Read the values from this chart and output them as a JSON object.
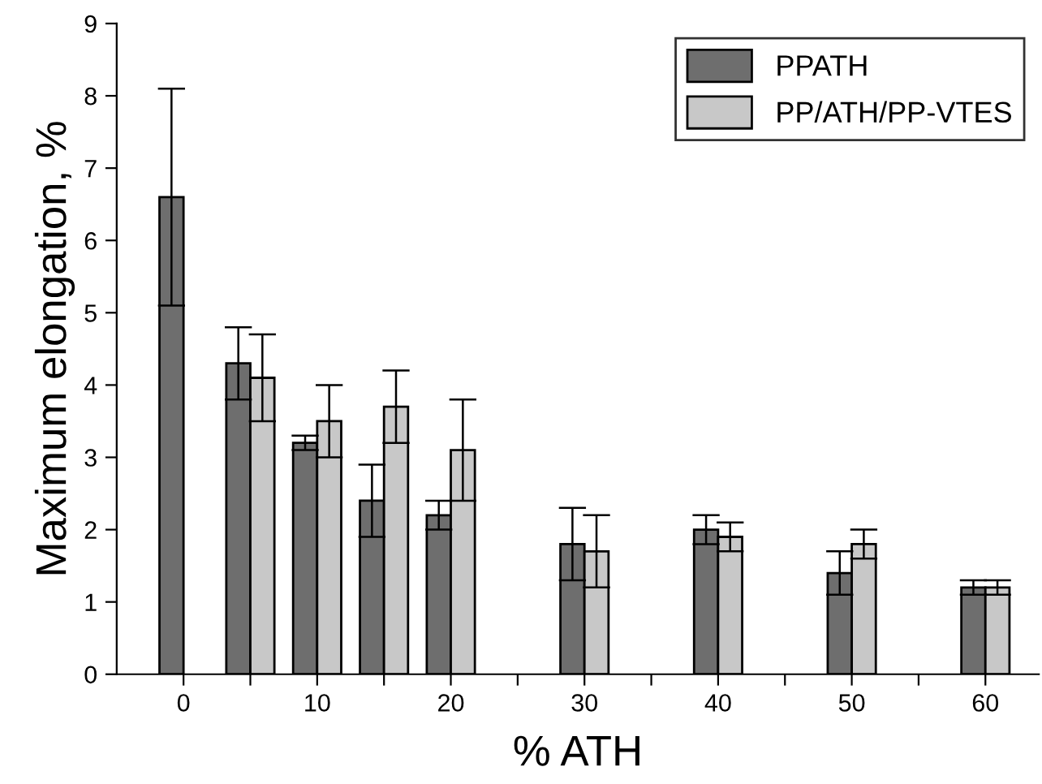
{
  "chart_data": {
    "type": "bar",
    "xlabel": "% ATH",
    "ylabel": "Maximum elongation, %",
    "series": [
      {
        "name": "PPATH",
        "color": "#6e6e6e",
        "x": [
          0,
          5,
          10,
          15,
          20,
          30,
          40,
          50,
          60
        ],
        "values": [
          6.6,
          4.3,
          3.2,
          2.4,
          2.2,
          1.8,
          2.0,
          1.4,
          1.2
        ],
        "errors": [
          1.5,
          0.5,
          0.1,
          0.5,
          0.2,
          0.5,
          0.2,
          0.3,
          0.1
        ]
      },
      {
        "name": "PP/ATH/PP-VTES",
        "color": "#c8c8c8",
        "x": [
          5,
          10,
          15,
          20,
          30,
          40,
          50,
          60
        ],
        "values": [
          4.1,
          3.5,
          3.7,
          3.1,
          1.7,
          1.9,
          1.8,
          1.2
        ],
        "errors": [
          0.6,
          0.5,
          0.5,
          0.7,
          0.5,
          0.2,
          0.2,
          0.1
        ]
      }
    ],
    "xlim": [
      -5,
      64
    ],
    "ylim": [
      0,
      9
    ],
    "xticks": [
      0,
      {
        "value": 5,
        "label": null
      },
      10,
      {
        "value": 15,
        "label": null
      },
      20,
      {
        "value": 25,
        "label": null
      },
      30,
      {
        "value": 35,
        "label": null
      },
      40,
      {
        "value": 45,
        "label": null
      },
      50,
      {
        "value": 55,
        "label": null
      },
      60
    ],
    "yticks": [
      0,
      1,
      2,
      3,
      4,
      5,
      6,
      7,
      8,
      9
    ],
    "legend": "top right",
    "grid": false
  }
}
